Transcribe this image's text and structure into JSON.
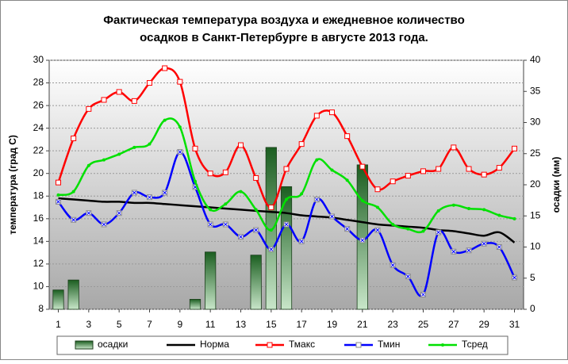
{
  "chart_data": {
    "type": "combo",
    "title": [
      "Фактическая температура воздуха и ежедневное количество",
      "осадков в Санкт-Петербурге в августе 2013 года."
    ],
    "ylabel": "температура (град С)",
    "y2label": "осадки (мм)",
    "x": [
      1,
      2,
      3,
      4,
      5,
      6,
      7,
      8,
      9,
      10,
      11,
      12,
      13,
      14,
      15,
      16,
      17,
      18,
      19,
      20,
      21,
      22,
      23,
      24,
      25,
      26,
      27,
      28,
      29,
      30,
      31
    ],
    "xlim": [
      0.4,
      31.6
    ],
    "xticks": [
      1,
      3,
      5,
      7,
      9,
      11,
      13,
      15,
      17,
      19,
      21,
      23,
      25,
      27,
      29,
      31
    ],
    "ylim": [
      8,
      30
    ],
    "yticks": [
      8,
      10,
      12,
      14,
      16,
      18,
      20,
      22,
      24,
      26,
      28,
      30
    ],
    "y2lim": [
      0,
      40
    ],
    "y2ticks": [
      0,
      5,
      10,
      15,
      20,
      25,
      30,
      35,
      40
    ],
    "grid": true,
    "legend": "bottom",
    "series": [
      {
        "name": "осадки",
        "type": "bar",
        "axis": "y2",
        "color": "#2e7d32",
        "values": [
          3.1,
          4.7,
          0,
          0,
          0,
          0,
          0,
          0,
          0,
          1.6,
          9.2,
          0,
          0,
          8.7,
          26,
          19.7,
          0,
          0,
          0,
          0,
          23.2,
          0,
          0,
          0,
          0,
          0,
          0,
          0,
          0,
          0,
          0
        ]
      },
      {
        "name": "Норма",
        "type": "line",
        "color": "#000000",
        "marker": "none",
        "values": [
          17.8,
          17.7,
          17.6,
          17.5,
          17.5,
          17.4,
          17.4,
          17.3,
          17.2,
          17.1,
          17.0,
          16.9,
          16.8,
          16.7,
          16.6,
          16.5,
          16.3,
          16.2,
          16.1,
          15.9,
          15.7,
          15.5,
          15.4,
          15.3,
          15.2,
          15.0,
          14.9,
          14.7,
          14.5,
          14.8,
          13.9
        ]
      },
      {
        "name": "Тмакс",
        "type": "line",
        "color": "#ff0000",
        "marker": "square",
        "values": [
          19.2,
          23.1,
          25.7,
          26.5,
          27.2,
          26.4,
          28.0,
          29.3,
          28.1,
          22.2,
          20.0,
          20.1,
          22.5,
          19.6,
          17.0,
          20.4,
          22.6,
          25.1,
          25.4,
          23.3,
          20.6,
          18.6,
          19.3,
          19.8,
          20.2,
          20.4,
          22.3,
          20.4,
          19.9,
          20.5,
          22.2
        ]
      },
      {
        "name": "Тмин",
        "type": "line",
        "color": "#0000ff",
        "marker": "cross",
        "values": [
          17.5,
          15.9,
          16.5,
          15.5,
          16.5,
          18.3,
          17.9,
          18.3,
          21.9,
          18.8,
          15.5,
          15.5,
          14.4,
          15.0,
          13.3,
          15.5,
          14.0,
          17.7,
          16.2,
          15.1,
          14.1,
          15.0,
          11.9,
          10.9,
          9.3,
          14.8,
          13.1,
          13.2,
          13.8,
          13.5,
          10.8
        ]
      },
      {
        "name": "Тсред",
        "type": "line",
        "color": "#00e000",
        "marker": "dot",
        "values": [
          18.1,
          18.4,
          20.7,
          21.2,
          21.7,
          22.3,
          22.6,
          24.7,
          24.1,
          19.3,
          16.8,
          17.3,
          18.4,
          16.8,
          15.0,
          17.7,
          18.2,
          21.2,
          20.3,
          19.4,
          17.6,
          17.0,
          15.5,
          15.1,
          14.9,
          16.7,
          17.2,
          16.9,
          16.8,
          16.3,
          16.0
        ]
      }
    ]
  }
}
